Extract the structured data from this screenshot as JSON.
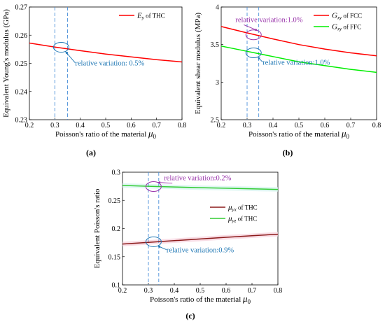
{
  "chart_data": [
    {
      "type": "line",
      "panel_label": "(a)",
      "xlabel": "Poisson's ratio of the material",
      "xlabel_symbol": "μ",
      "xlabel_sub": "0",
      "ylabel": "Equivalent Young's modulus (GPa)",
      "xlim": [
        0.2,
        0.8
      ],
      "ylim": [
        0.23,
        0.27
      ],
      "xticks": [
        "0.2",
        "0.3",
        "0.4",
        "0.5",
        "0.6",
        "0.7",
        "0.8"
      ],
      "yticks": [
        "0.23",
        "0.24",
        "0.25",
        "0.26",
        "0.27"
      ],
      "legend_position": "top-right",
      "series": [
        {
          "name": "E_y of THC",
          "legend_sym": "E",
          "legend_sub": "y",
          "legend_rest": " of THC",
          "color": "#ff0000",
          "x": [
            0.2,
            0.3,
            0.4,
            0.5,
            0.6,
            0.7,
            0.8
          ],
          "y": [
            0.2572,
            0.2558,
            0.2545,
            0.2533,
            0.2523,
            0.2513,
            0.2505
          ]
        }
      ],
      "vlines": [
        0.3,
        0.35
      ],
      "annotations": [
        {
          "text": "relative variation: 0.5%",
          "color": "#1f77b4",
          "ellipse_at": [
            0.325,
            0.2557
          ],
          "label_at": [
            0.38,
            0.2492
          ]
        }
      ]
    },
    {
      "type": "line",
      "panel_label": "(b)",
      "xlabel": "Poisson's ratio of the material",
      "xlabel_symbol": "μ",
      "xlabel_sub": "0",
      "ylabel": "Equivalent shear modulus (MPa)",
      "xlim": [
        0.2,
        0.8
      ],
      "ylim": [
        2.5,
        4
      ],
      "xticks": [
        "0.2",
        "0.3",
        "0.4",
        "0.5",
        "0.6",
        "0.7",
        "0.8"
      ],
      "yticks": [
        "2.5",
        "3",
        "3.5",
        "4"
      ],
      "legend_position": "top-right",
      "series": [
        {
          "name": "G_xy of FCC",
          "legend_sym": "G",
          "legend_sub": "xy",
          "legend_rest": " of FCC",
          "color": "#ff0000",
          "x": [
            0.2,
            0.3,
            0.4,
            0.5,
            0.6,
            0.7,
            0.8
          ],
          "y": [
            3.74,
            3.655,
            3.575,
            3.5,
            3.44,
            3.39,
            3.35
          ]
        },
        {
          "name": "G_xy of FFC",
          "legend_sym": "G",
          "legend_sub": "xy",
          "legend_rest": " of FFC",
          "color": "#00ee00",
          "x": [
            0.2,
            0.3,
            0.4,
            0.5,
            0.6,
            0.7,
            0.8
          ],
          "y": [
            3.48,
            3.41,
            3.34,
            3.27,
            3.22,
            3.17,
            3.13
          ]
        }
      ],
      "vlines": [
        0.3,
        0.345
      ],
      "annotations": [
        {
          "text": "relative variation:1.0%",
          "color": "#9933aa",
          "ellipse_at": [
            0.325,
            3.63
          ],
          "label_at": [
            0.255,
            3.8
          ]
        },
        {
          "text": "relative variation:1.0%",
          "color": "#1f77b4",
          "ellipse_at": [
            0.325,
            3.39
          ],
          "label_at": [
            0.36,
            3.23
          ]
        }
      ]
    },
    {
      "type": "line",
      "panel_label": "(c)",
      "xlabel": "Poisson's ratio of the material",
      "xlabel_symbol": "μ",
      "xlabel_sub": "0",
      "ylabel": "Equivalent Poisson's ratio",
      "xlim": [
        0.2,
        0.8
      ],
      "ylim": [
        0.1,
        0.3
      ],
      "xticks": [
        "0.2",
        "0.3",
        "0.4",
        "0.5",
        "0.6",
        "0.7",
        "0.8"
      ],
      "yticks": [
        "0.1",
        "0.15",
        "0.2",
        "0.25",
        "0.3"
      ],
      "legend_position": "right",
      "series": [
        {
          "name": "μ_yx of THC",
          "legend_sym": "μ",
          "legend_sub": "yx",
          "legend_rest": " of THC",
          "color": "#8b1a1a",
          "x": [
            0.2,
            0.3,
            0.4,
            0.5,
            0.6,
            0.7,
            0.8
          ],
          "y": [
            0.1725,
            0.1755,
            0.1785,
            0.1815,
            0.1845,
            0.1872,
            0.19
          ]
        },
        {
          "name": "μ_yz of THC",
          "legend_sym": "μ",
          "legend_sub": "yz",
          "legend_rest": " of THC",
          "color": "#33cc33",
          "x": [
            0.2,
            0.3,
            0.4,
            0.5,
            0.6,
            0.7,
            0.8
          ],
          "y": [
            0.2765,
            0.275,
            0.2738,
            0.2725,
            0.2715,
            0.2705,
            0.2695
          ]
        }
      ],
      "vlines": [
        0.3,
        0.34
      ],
      "annotations": [
        {
          "text": "relative variation:0.2%",
          "color": "#9933aa",
          "ellipse_at": [
            0.32,
            0.2745
          ],
          "label_at": [
            0.36,
            0.2855
          ]
        },
        {
          "text": "relative variation:0.9%",
          "color": "#1f77b4",
          "ellipse_at": [
            0.32,
            0.1765
          ],
          "label_at": [
            0.37,
            0.1575
          ]
        }
      ]
    }
  ]
}
